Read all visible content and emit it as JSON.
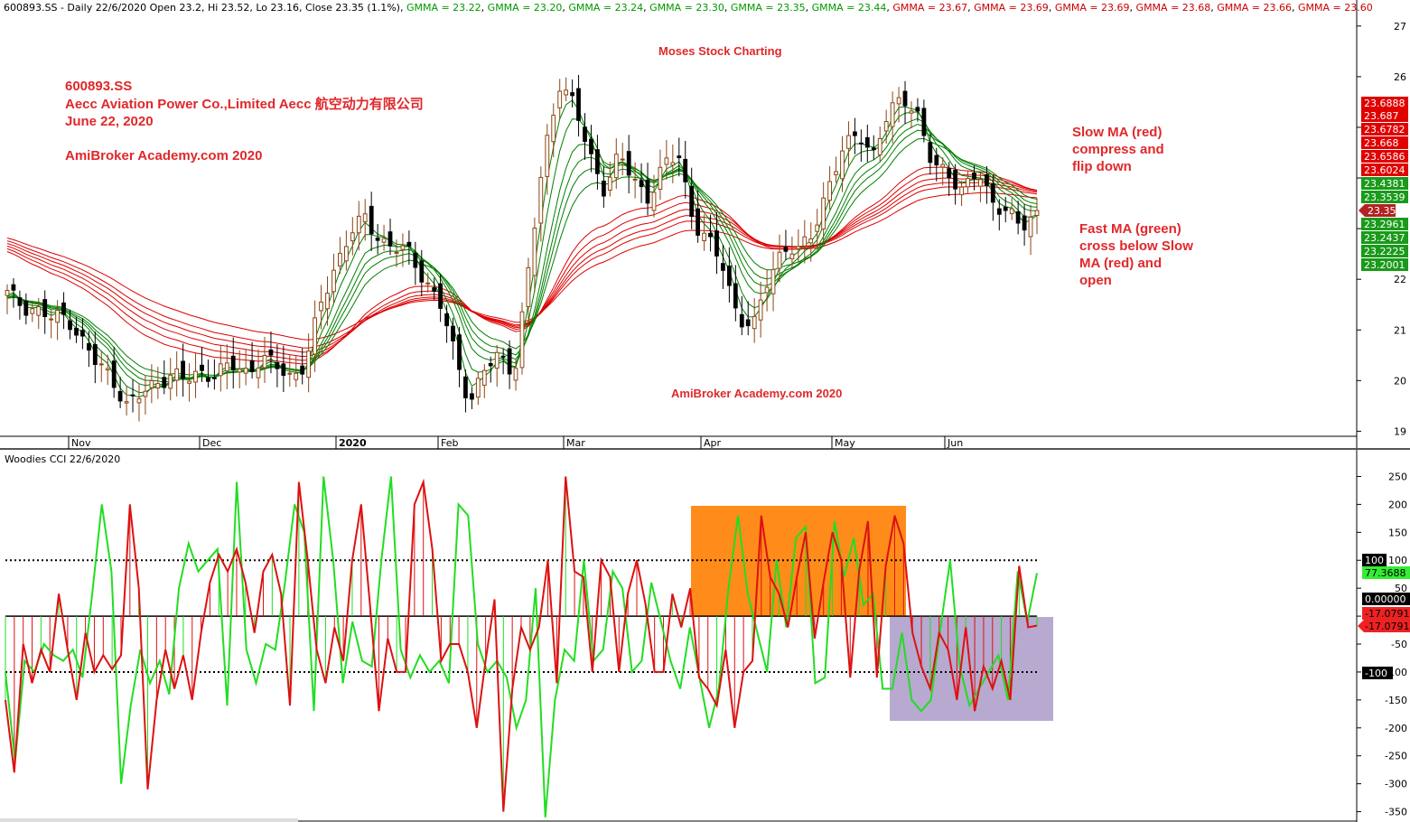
{
  "header": {
    "ticker_info": "600893.SS - Daily 22/6/2020 Open 23.2, Hi 23.52, Lo 23.16, Close 23.35 (1.1%)",
    "gmma": [
      {
        "text": "GMMA = 23.22",
        "color": "#009900"
      },
      {
        "text": "GMMA = 23.20",
        "color": "#009900"
      },
      {
        "text": "GMMA = 23.24",
        "color": "#009900"
      },
      {
        "text": "GMMA = 23.30",
        "color": "#009900"
      },
      {
        "text": "GMMA = 23.35",
        "color": "#009900"
      },
      {
        "text": "GMMA = 23.44",
        "color": "#009900"
      },
      {
        "text": "GMMA = 23.67",
        "color": "#cc0000"
      },
      {
        "text": "GMMA = 23.69",
        "color": "#cc0000"
      },
      {
        "text": "GMMA = 23.69",
        "color": "#cc0000"
      },
      {
        "text": "GMMA = 23.68",
        "color": "#cc0000"
      },
      {
        "text": "GMMA = 23.66",
        "color": "#cc0000"
      },
      {
        "text": "GMMA = 23.60",
        "color": "#cc0000"
      }
    ]
  },
  "annotations": {
    "title_block": [
      "600893.SS",
      "Aecc Aviation Power Co.,Limited   Aecc 航空动力有限公司",
      "June 22, 2020",
      "",
      "AmiBroker Academy.com  2020"
    ],
    "center_top": "Moses Stock Charting",
    "center_bottom": "AmiBroker Academy.com  2020",
    "slow_note": [
      "Slow MA (red)",
      "compress and",
      "flip down"
    ],
    "fast_note": [
      "Fast MA (green)",
      "cross below Slow",
      "MA (red) and",
      "open"
    ]
  },
  "colors": {
    "up_candle": "#8b4513",
    "down_candle": "#000000",
    "fast_ma": "#008000",
    "slow_ma": "#dd0000",
    "cci_green": "#22dd22",
    "cci_red": "#dd1111",
    "orange_box": "#ff8c1a",
    "purple_box": "#b7a9cf"
  },
  "cci_panel": {
    "label": "Woodies CCI  22/6/2020"
  },
  "price_tags": [
    {
      "text": "23.6888",
      "bg": "#e00000"
    },
    {
      "text": "23.687",
      "bg": "#e00000"
    },
    {
      "text": "23.6782",
      "bg": "#e00000"
    },
    {
      "text": "23.668",
      "bg": "#e00000"
    },
    {
      "text": "23.6586",
      "bg": "#e00000"
    },
    {
      "text": "23.6024",
      "bg": "#e00000"
    },
    {
      "text": "23.4381",
      "bg": "#1a9a1a"
    },
    {
      "text": "23.3539",
      "bg": "#1a9a1a"
    },
    {
      "text": "23.35",
      "bg": "#b22222"
    },
    {
      "text": "23.2961",
      "bg": "#1a9a1a"
    },
    {
      "text": "23.2437",
      "bg": "#1a9a1a"
    },
    {
      "text": "23.2225",
      "bg": "#1a9a1a"
    },
    {
      "text": "23.2001",
      "bg": "#1a9a1a"
    }
  ],
  "cci_tags": [
    {
      "text": "100",
      "bg": "#000000",
      "fg": "#ffffff"
    },
    {
      "text": "77.3688",
      "bg": "#33ee33",
      "fg": "#000000"
    },
    {
      "text": "0.00000",
      "bg": "#000000",
      "fg": "#ffffff"
    },
    {
      "text": "-17.0791",
      "bg": "#ee2222",
      "fg": "#000000"
    },
    {
      "text": "-17.0791",
      "bg": "#ee2222",
      "fg": "#000000"
    },
    {
      "text": "-100",
      "bg": "#000000",
      "fg": "#ffffff"
    }
  ],
  "chart_data": [
    {
      "type": "candlestick",
      "title": "600893.SS Daily",
      "x": [
        "Nov",
        "Dec",
        "2020",
        "Feb",
        "Mar",
        "Apr",
        "May",
        "Jun"
      ],
      "y_ticks": [
        19,
        20,
        21,
        22,
        23,
        24,
        25,
        26,
        27
      ],
      "y_tick_labels": [
        "19",
        "20",
        "21",
        "",
        "",
        "",
        "",
        "26",
        "27"
      ],
      "ylim": [
        18.9,
        27.3
      ],
      "close_path": [
        21.7,
        21.5,
        21.4,
        21.2,
        21.3,
        20.8,
        20.3,
        20.1,
        19.5,
        19.7,
        20.0,
        20.1,
        20.0,
        20.2,
        20.1,
        20.3,
        20.2,
        20.4,
        20.3,
        20.1,
        20.3,
        21.5,
        22.3,
        22.9,
        23.2,
        22.8,
        22.6,
        22.5,
        22.0,
        21.5,
        20.5,
        19.6,
        20.2,
        20.5,
        20.2,
        22.3,
        24.5,
        25.9,
        25.4,
        24.5,
        23.8,
        24.4,
        24.0,
        23.6,
        24.2,
        24.5,
        23.1,
        22.7,
        22.3,
        21.2,
        21.0,
        22.1,
        22.6,
        22.5,
        23.0,
        23.8,
        24.5,
        25.0,
        24.4,
        25.2,
        25.7,
        25.2,
        24.2,
        24.2,
        23.7,
        24.1,
        23.6,
        23.3,
        23.0,
        23.35
      ],
      "gmma_fast_last": [
        23.22,
        23.2,
        23.24,
        23.3,
        23.35,
        23.44
      ],
      "gmma_slow_last": [
        23.67,
        23.69,
        23.69,
        23.68,
        23.66,
        23.6
      ],
      "last_close": 23.35
    },
    {
      "type": "line",
      "title": "Woodies CCI  22/6/2020",
      "y_ticks": [
        250,
        200,
        150,
        100,
        50,
        0,
        -50,
        -100,
        -150,
        -200,
        -250,
        -300,
        -350
      ],
      "ylim": [
        -362,
        275
      ],
      "series": [
        {
          "name": "CCI",
          "values": [
            -150,
            -280,
            -50,
            -120,
            -60,
            -100,
            40,
            -60,
            -150,
            -30,
            -100,
            -70,
            -95,
            -70,
            200,
            50,
            -310,
            -150,
            -60,
            -130,
            -70,
            -150,
            -30,
            60,
            110,
            80,
            120,
            60,
            -30,
            80,
            110,
            40,
            -160,
            240,
            100,
            -60,
            -120,
            -20,
            -80,
            100,
            200,
            20,
            -170,
            -40,
            -100,
            -100,
            200,
            240,
            120,
            -80,
            -50,
            -50,
            -100,
            -200,
            -80,
            30,
            -350,
            -130,
            -20,
            -60,
            -20,
            100,
            -120,
            250,
            80,
            70,
            -100,
            100,
            70,
            -100,
            40,
            100,
            20,
            -100,
            -100,
            40,
            -20,
            50,
            -110,
            -130,
            -160,
            -60,
            -200,
            -100,
            -80,
            180,
            70,
            40,
            -20,
            70,
            150,
            -40,
            60,
            150,
            100,
            -110,
            80,
            170,
            -110,
            90,
            180,
            130,
            -30,
            -90,
            -130,
            -30,
            -60,
            -150,
            -20,
            -170,
            -90,
            -130,
            -80,
            -150,
            90,
            -20,
            -17
          ]
        },
        {
          "name": "TurboCCI",
          "values": [
            -100,
            -260,
            -80,
            -100,
            -50,
            -70,
            -80,
            -60,
            -110,
            40,
            200,
            80,
            -300,
            -160,
            -60,
            -120,
            -80,
            -140,
            50,
            130,
            80,
            100,
            120,
            -160,
            240,
            -60,
            -120,
            -50,
            -60,
            60,
            200,
            150,
            -170,
            250,
            100,
            -120,
            -10,
            -80,
            -90,
            100,
            250,
            -60,
            -110,
            -70,
            -100,
            -80,
            -120,
            200,
            180,
            -50,
            -100,
            -80,
            -110,
            -200,
            -150,
            50,
            -360,
            -150,
            -60,
            -80,
            100,
            -80,
            -60,
            80,
            50,
            -100,
            -80,
            60,
            -10,
            -80,
            -130,
            -20,
            -110,
            -200,
            -130,
            50,
            180,
            40,
            -30,
            -100,
            100,
            -20,
            140,
            160,
            -120,
            -110,
            170,
            70,
            140,
            20,
            40,
            -130,
            -130,
            -30,
            -150,
            -170,
            -150,
            -20,
            100,
            -90,
            -160,
            -130,
            -100,
            -70,
            -150,
            80,
            -10,
            77
          ]
        }
      ],
      "levels": [
        100,
        0,
        -100
      ],
      "last_values": [
        77.3688,
        -17.0791
      ]
    }
  ]
}
